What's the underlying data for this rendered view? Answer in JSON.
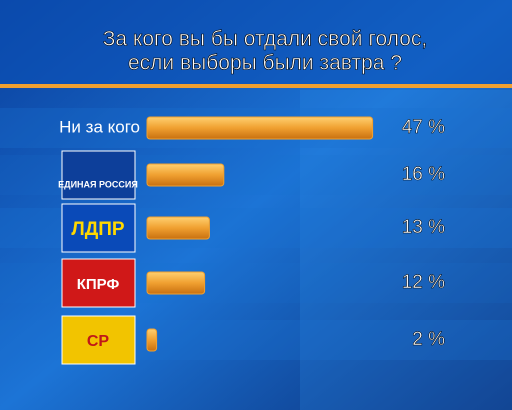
{
  "chart_data": {
    "type": "bar",
    "title": [
      "За кого вы бы отдали свой голос,",
      "если выборы были завтра ?"
    ],
    "categories": [
      "Ни за кого",
      "ЕДИНАЯ РОССИЯ",
      "ЛДПР",
      "КПРФ",
      "СР"
    ],
    "values": [
      47,
      16,
      13,
      12,
      2
    ],
    "value_labels": [
      "47 %",
      "16 %",
      "13 %",
      "12 %",
      "2 %"
    ],
    "color": "#f0a030"
  }
}
